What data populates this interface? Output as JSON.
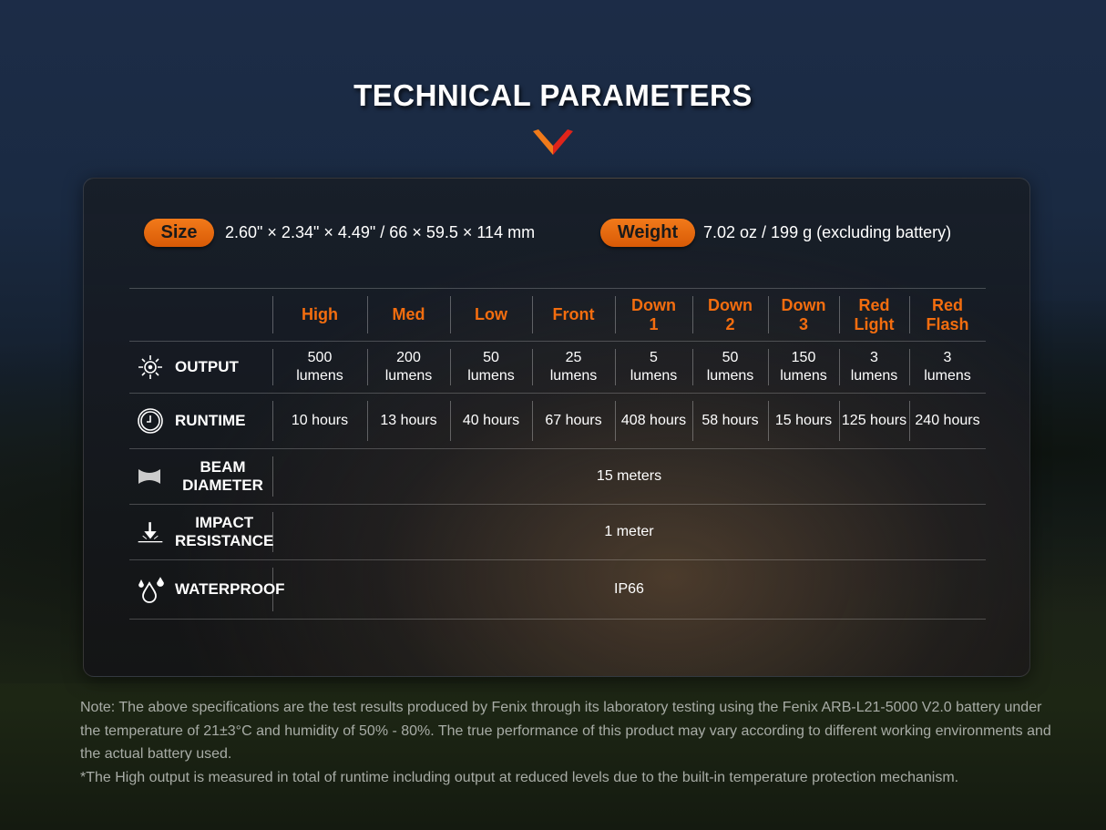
{
  "title": "TECHNICAL PARAMETERS",
  "colors": {
    "accent": "#f36d0f"
  },
  "size": {
    "label": "Size",
    "value": "2.60\" × 2.34\" × 4.49\" / 66 × 59.5 × 114 mm"
  },
  "weight": {
    "label": "Weight",
    "value": "7.02 oz / 199 g (excluding battery)"
  },
  "modes": [
    "High",
    "Med",
    "Low",
    "Front",
    "Down 1",
    "Down 2",
    "Down 3",
    "Red Light",
    "Red Flash"
  ],
  "output": {
    "label": "OUTPUT",
    "icon": "sun-icon",
    "values": [
      "500 lumens",
      "200 lumens",
      "50 lumens",
      "25 lumens",
      "5 lumens",
      "50 lumens",
      "150 lumens",
      "3 lumens",
      "3 lumens"
    ]
  },
  "runtime": {
    "label": "RUNTIME",
    "icon": "clock-icon",
    "values": [
      "10 hours",
      "13 hours",
      "40 hours",
      "67 hours",
      "408 hours",
      "58 hours",
      "15 hours",
      "125 hours",
      "240 hours"
    ]
  },
  "beam": {
    "label": "BEAM DIAMETER",
    "icon": "beam-icon",
    "value": "15 meters"
  },
  "impact": {
    "label": "IMPACT RESISTANCE",
    "icon": "impact-arrow-icon",
    "value": "1 meter"
  },
  "waterproof": {
    "label": "WATERPROOF",
    "icon": "water-drops-icon",
    "value": "IP66"
  },
  "note": [
    "Note: The above specifications are the test results produced by Fenix through its laboratory testing using the Fenix ARB-L21-5000 V2.0 battery under the temperature of 21±3°C and humidity of 50% - 80%. The true performance of this product may vary according to different working environments and the actual battery used.",
    "*The High output is measured in total of runtime including output at reduced levels due to the built-in temperature protection mechanism."
  ]
}
